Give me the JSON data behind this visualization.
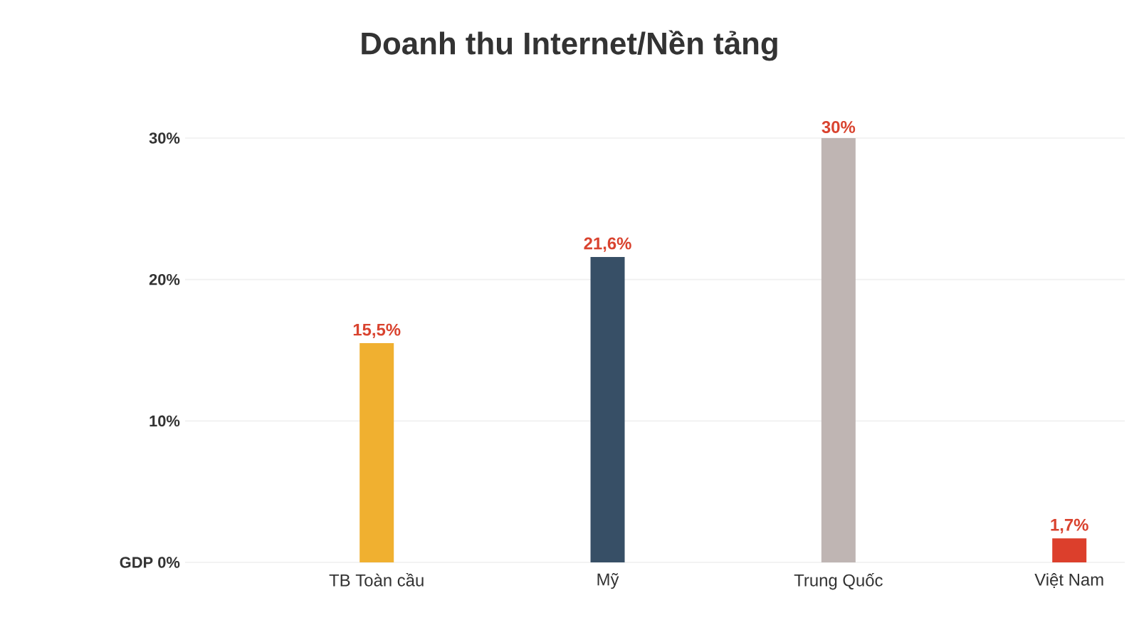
{
  "chart_data": {
    "type": "bar",
    "title": "Doanh thu Internet/Nền tảng",
    "categories": [
      "TB Toàn cầu",
      "Mỹ",
      "Trung Quốc",
      "Việt Nam"
    ],
    "values": [
      15.5,
      21.6,
      30,
      1.7
    ],
    "colors": [
      "#f0b030",
      "#374f66",
      "#bfb5b3",
      "#dc3f2c"
    ],
    "value_labels": [
      "15,5%",
      "21,6%",
      "30%",
      "1,7%"
    ],
    "ylim": [
      0,
      30
    ],
    "yticks": [
      {
        "value": 0,
        "label": "GDP 0%"
      },
      {
        "value": 10,
        "label": "10%"
      },
      {
        "value": 20,
        "label": "20%"
      },
      {
        "value": 30,
        "label": "30%"
      }
    ],
    "grid": "y"
  }
}
